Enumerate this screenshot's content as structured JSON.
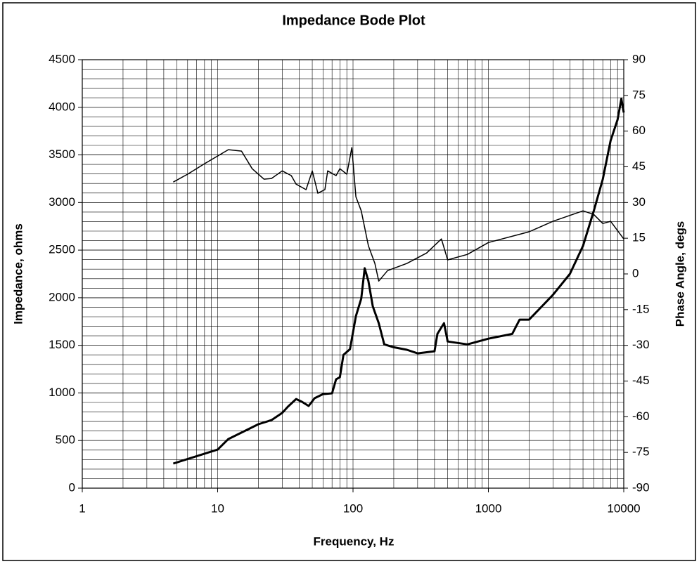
{
  "chart_data": {
    "type": "line",
    "title": "Impedance Bode Plot",
    "x_label": "Frequency, Hz",
    "y_label": "Impedance, ohms",
    "y2_label": "Phase Angle, degs",
    "xscale": "log",
    "xlim": [
      1,
      10000
    ],
    "xticks": [
      1,
      10,
      100,
      1000,
      10000
    ],
    "ylim": [
      0,
      4500
    ],
    "yticks": [
      0,
      500,
      1000,
      1500,
      2000,
      2500,
      3000,
      3500,
      4000,
      4500
    ],
    "y_minor_step": 100,
    "y2lim": [
      -90,
      90
    ],
    "y2ticks": [
      -90,
      -75,
      -60,
      -45,
      -30,
      -15,
      0,
      15,
      30,
      45,
      60,
      75,
      90
    ],
    "grid": true,
    "series": [
      {
        "color": "#000000",
        "line_width": 3,
        "x": [
          4.7,
          10,
          12,
          20,
          25,
          30,
          33,
          38,
          42,
          47,
          52,
          60,
          70,
          75,
          80,
          85,
          95,
          105,
          115,
          122,
          130,
          140,
          155,
          170,
          200,
          250,
          300,
          400,
          420,
          470,
          500,
          700,
          1000,
          1500,
          1700,
          2000,
          3000,
          4000,
          5000,
          6000,
          7000,
          8000,
          9000,
          9600,
          10000
        ],
        "values": [
          258,
          405,
          516,
          671,
          715,
          790,
          855,
          936,
          907,
          863,
          944,
          988,
          996,
          1143,
          1165,
          1400,
          1460,
          1807,
          1990,
          2310,
          2175,
          1910,
          1733,
          1510,
          1480,
          1453,
          1416,
          1438,
          1620,
          1733,
          1540,
          1510,
          1570,
          1620,
          1770,
          1770,
          2030,
          2250,
          2545,
          2910,
          3245,
          3650,
          3870,
          4090,
          3945
        ]
      },
      {
        "color": "#000000",
        "line_width": 1.5,
        "axis": "y2",
        "x": [
          4.7,
          6,
          8,
          12,
          15,
          18,
          22,
          25,
          30,
          35,
          38,
          45,
          50,
          55,
          62,
          65,
          75,
          80,
          90,
          98,
          105,
          115,
          130,
          145,
          155,
          180,
          250,
          350,
          450,
          500,
          700,
          1000,
          2000,
          3000,
          5000,
          6000,
          7000,
          8000,
          10000
        ],
        "values": [
          38.6,
          41.9,
          46.3,
          52.2,
          51.6,
          44.2,
          39.8,
          40.1,
          43.3,
          41.3,
          37.7,
          35.4,
          43.3,
          33.9,
          35.4,
          43.3,
          41.3,
          44.2,
          41.9,
          53.1,
          32.4,
          26.5,
          11.8,
          4.4,
          -3,
          1.4,
          4.4,
          8.8,
          14.7,
          5.9,
          8.2,
          13.2,
          17.7,
          22.1,
          26.5,
          25,
          21.2,
          22.1,
          14.7
        ]
      }
    ]
  }
}
